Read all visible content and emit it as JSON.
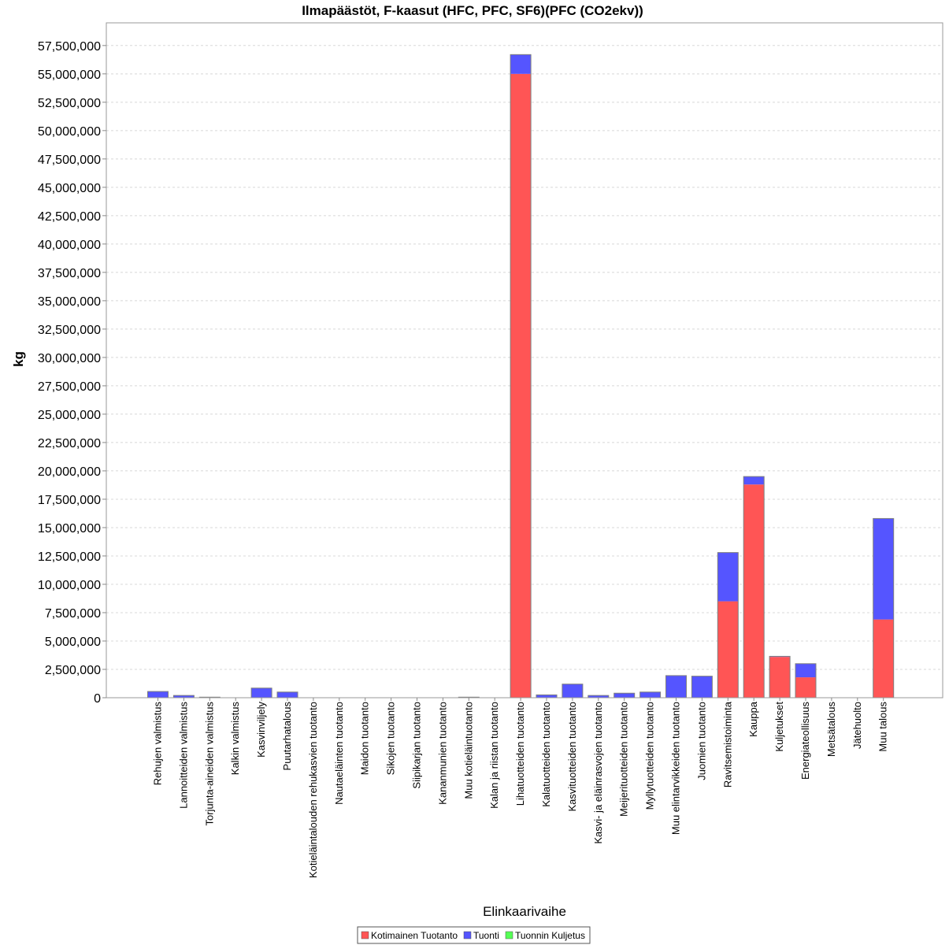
{
  "chart_data": {
    "type": "bar",
    "stacked": true,
    "title": "Ilmapäästöt, F-kaasut (HFC, PFC, SF6)(PFC (CO2ekv))",
    "xlabel": "Elinkaarivaihe",
    "ylabel": "kg",
    "ylim": [
      0,
      59500000
    ],
    "ytick_step": 2500000,
    "yticks": [
      "0",
      "2,500,000",
      "5,000,000",
      "7,500,000",
      "10,000,000",
      "12,500,000",
      "15,000,000",
      "17,500,000",
      "20,000,000",
      "22,500,000",
      "25,000,000",
      "27,500,000",
      "30,000,000",
      "32,500,000",
      "35,000,000",
      "37,500,000",
      "40,000,000",
      "42,500,000",
      "45,000,000",
      "47,500,000",
      "50,000,000",
      "52,500,000",
      "55,000,000",
      "57,500,000"
    ],
    "grid": true,
    "legend_position": "bottom-center",
    "categories": [
      "Rehujen valmistus",
      "Lannoitteiden valmistus",
      "Torjunta-aineiden valmistus",
      "Kalkin valmistus",
      "Kasvinviljely",
      "Puutarhatalous",
      "Kotieläintalouden rehukasvien tuotanto",
      "Nautaeläinten tuotanto",
      "Maidon tuotanto",
      "Sikojen tuotanto",
      "Siipikarjan tuotanto",
      "Kananmunien tuotanto",
      "Muu kotieläintuotanto",
      "Kalan ja riistan tuotanto",
      "Lihatuotteiden tuotanto",
      "Kalatuotteiden tuotanto",
      "Kasvituotteiden tuotanto",
      "Kasvi- ja eläinrasvojen tuotanto",
      "Meijerituotteiden tuotanto",
      "Myllytuotteiden tuotanto",
      "Muu elintarvikkeiden tuotanto",
      "Juomien tuotanto",
      "Ravitsemistoiminta",
      "Kauppa",
      "Kuljetukset",
      "Energiateollisuus",
      "Metsätalous",
      "Jätehuolto",
      "Muu talous"
    ],
    "series": [
      {
        "name": "Kotimainen Tuotanto",
        "color": "#ff5555",
        "values": [
          0,
          0,
          0,
          0,
          0,
          0,
          0,
          0,
          0,
          0,
          0,
          0,
          0,
          0,
          55000000,
          0,
          0,
          0,
          0,
          0,
          0,
          0,
          8500000,
          18800000,
          3600000,
          1800000,
          0,
          0,
          6900000
        ]
      },
      {
        "name": "Tuonti",
        "color": "#5555ff",
        "values": [
          550000,
          200000,
          50000,
          0,
          850000,
          500000,
          0,
          0,
          0,
          0,
          0,
          0,
          50000,
          0,
          1700000,
          250000,
          1200000,
          200000,
          400000,
          500000,
          1950000,
          1900000,
          4300000,
          700000,
          50000,
          1200000,
          0,
          0,
          8900000
        ]
      },
      {
        "name": "Tuonnin Kuljetus",
        "color": "#55ff55",
        "values": [
          0,
          0,
          0,
          0,
          0,
          0,
          0,
          0,
          0,
          0,
          0,
          0,
          0,
          0,
          0,
          0,
          0,
          0,
          0,
          0,
          0,
          0,
          0,
          0,
          0,
          0,
          0,
          0,
          0
        ]
      }
    ]
  }
}
